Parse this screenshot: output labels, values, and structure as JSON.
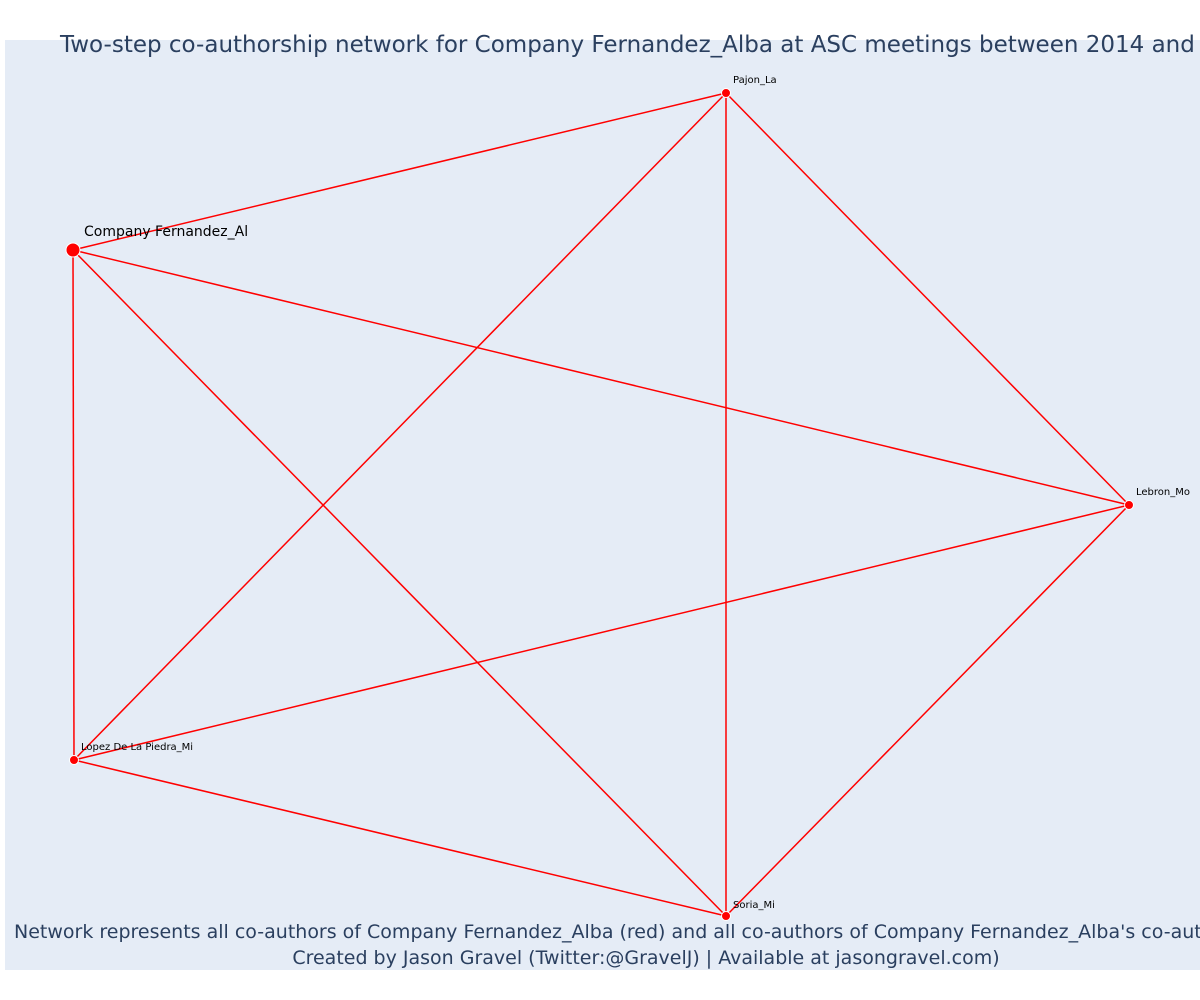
{
  "header": {
    "title": "Two-step co-authorship network for Company Fernandez_Alba at ASC meetings between 2014 and"
  },
  "nodes": [
    {
      "label": "Company Fernandez_Al"
    },
    {
      "label": "Pajon_La"
    },
    {
      "label": "Lebron_Mo"
    },
    {
      "label": "Soria_Mi"
    },
    {
      "label": "Lopez De La Piedra_Mi"
    }
  ],
  "footer": {
    "lines": [
      "Network represents all co-authors of Company Fernandez_Alba (red) and all co-authors of Company Fernandez_Alba's co-authors",
      "Created by Jason Gravel (Twitter:@GravelJ) | Available at jasongravel.com)"
    ]
  }
}
